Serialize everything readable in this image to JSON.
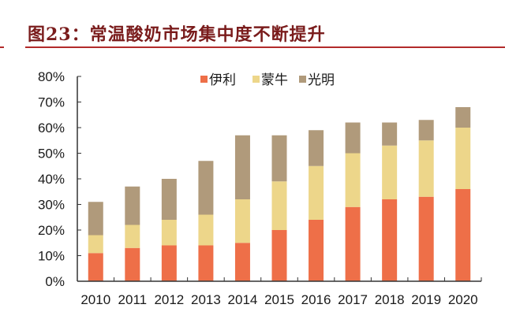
{
  "title": "图23：常温酸奶市场集中度不断提升",
  "chart_data": {
    "type": "bar",
    "stacked": true,
    "title": "图23：常温酸奶市场集中度不断提升",
    "xlabel": "",
    "ylabel": "",
    "categories": [
      "2010",
      "2011",
      "2012",
      "2013",
      "2014",
      "2015",
      "2016",
      "2017",
      "2018",
      "2019",
      "2020"
    ],
    "series": [
      {
        "name": "伊利",
        "color": "#ee6f48",
        "values": [
          11,
          13,
          14,
          14,
          15,
          20,
          24,
          29,
          32,
          33,
          36
        ]
      },
      {
        "name": "蒙牛",
        "color": "#edd68a",
        "values": [
          7,
          9,
          10,
          12,
          17,
          19,
          21,
          21,
          21,
          22,
          24
        ]
      },
      {
        "name": "光明",
        "color": "#b09a7b",
        "values": [
          13,
          15,
          16,
          21,
          25,
          18,
          14,
          12,
          9,
          8,
          8
        ]
      }
    ],
    "ylim": [
      0,
      80
    ],
    "yticks": [
      0,
      10,
      20,
      30,
      40,
      50,
      60,
      70,
      80
    ],
    "ytick_labels": [
      "0%",
      "10%",
      "20%",
      "30%",
      "40%",
      "50%",
      "60%",
      "70%",
      "80%"
    ],
    "unit": "%",
    "legend_position": "top-center",
    "grid": false
  }
}
